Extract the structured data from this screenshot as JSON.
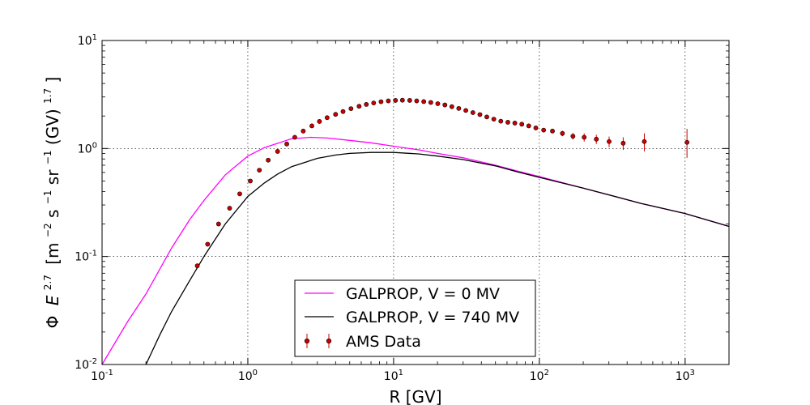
{
  "chart_data": {
    "type": "scatter",
    "xscale": "log",
    "yscale": "log",
    "xlim": [
      0.1,
      2000
    ],
    "ylim": [
      0.01,
      10
    ],
    "grid": true,
    "legend_position": "lower-center",
    "xlabel": "R [GV]",
    "ylabel": {
      "phi": "Φ",
      "E": "E",
      "E_exp": "2.7",
      "open": "[m",
      "m_exp": "−2",
      "s": "s",
      "s_exp": "−1",
      "sr": "sr",
      "sr_exp": "−1",
      "gv": "(GV)",
      "gv_exp": "1.7",
      "close": "]"
    },
    "x_ticks": [
      {
        "value": 0.1,
        "base": "10",
        "exp": "-1"
      },
      {
        "value": 1,
        "base": "10",
        "exp": "0"
      },
      {
        "value": 10,
        "base": "10",
        "exp": "1"
      },
      {
        "value": 100,
        "base": "10",
        "exp": "2"
      },
      {
        "value": 1000,
        "base": "10",
        "exp": "3"
      }
    ],
    "y_ticks": [
      {
        "value": 0.01,
        "base": "10",
        "exp": "-2"
      },
      {
        "value": 0.1,
        "base": "10",
        "exp": "-1"
      },
      {
        "value": 1,
        "base": "10",
        "exp": "0"
      },
      {
        "value": 10,
        "base": "10",
        "exp": "1"
      }
    ],
    "series": [
      {
        "name": "GALPROP, V = 0 MV",
        "kind": "line",
        "color": "#ff00ff",
        "x": [
          0.1,
          0.15,
          0.2,
          0.3,
          0.4,
          0.5,
          0.7,
          1.0,
          1.3,
          2.0,
          2.7,
          3.5,
          5.0,
          7.0,
          10,
          15,
          20,
          30,
          50,
          70,
          100,
          200,
          500,
          1000,
          2000
        ],
        "y": [
          0.01,
          0.025,
          0.045,
          0.12,
          0.22,
          0.33,
          0.57,
          0.85,
          1.02,
          1.23,
          1.27,
          1.25,
          1.19,
          1.13,
          1.05,
          0.97,
          0.9,
          0.82,
          0.7,
          0.62,
          0.55,
          0.43,
          0.31,
          0.25,
          0.19
        ]
      },
      {
        "name": "GALPROP, V = 740 MV",
        "kind": "line",
        "color": "#000000",
        "x": [
          0.2,
          0.25,
          0.3,
          0.4,
          0.5,
          0.7,
          1.0,
          1.3,
          1.6,
          2.0,
          3.0,
          4.0,
          5.0,
          7.0,
          10,
          15,
          20,
          30,
          50,
          70,
          100,
          200,
          500,
          1000,
          2000
        ],
        "y": [
          0.01,
          0.019,
          0.031,
          0.06,
          0.1,
          0.2,
          0.36,
          0.48,
          0.58,
          0.68,
          0.81,
          0.87,
          0.9,
          0.92,
          0.92,
          0.89,
          0.85,
          0.79,
          0.69,
          0.61,
          0.54,
          0.43,
          0.31,
          0.25,
          0.19
        ]
      },
      {
        "name": "AMS Data",
        "kind": "points",
        "marker_color": "#cc0000",
        "error_color": "#cc0000",
        "x": [
          0.45,
          0.53,
          0.63,
          0.75,
          0.88,
          1.04,
          1.2,
          1.38,
          1.6,
          1.85,
          2.1,
          2.4,
          2.75,
          3.1,
          3.5,
          4.0,
          4.5,
          5.1,
          5.8,
          6.5,
          7.3,
          8.2,
          9.2,
          10.3,
          11.5,
          12.9,
          14.4,
          16.1,
          18.0,
          20.1,
          22.5,
          25.1,
          28.0,
          31.3,
          35.0,
          39.1,
          43.6,
          48.7,
          54.4,
          60.8,
          67.9,
          75.8,
          84.6,
          94.6,
          107,
          123,
          144,
          170,
          203,
          246,
          301,
          376,
          525,
          1030
        ],
        "y": [
          0.082,
          0.13,
          0.2,
          0.28,
          0.38,
          0.5,
          0.63,
          0.78,
          0.94,
          1.1,
          1.27,
          1.45,
          1.62,
          1.78,
          1.93,
          2.07,
          2.2,
          2.34,
          2.46,
          2.56,
          2.64,
          2.71,
          2.76,
          2.79,
          2.8,
          2.79,
          2.76,
          2.72,
          2.67,
          2.6,
          2.53,
          2.44,
          2.35,
          2.25,
          2.15,
          2.06,
          1.96,
          1.87,
          1.79,
          1.75,
          1.72,
          1.68,
          1.62,
          1.55,
          1.48,
          1.45,
          1.38,
          1.3,
          1.27,
          1.22,
          1.16,
          1.12,
          1.16,
          1.14
        ],
        "err_plus": [
          0.001,
          0.001,
          0.001,
          0.001,
          0.001,
          0.001,
          0.001,
          0.001,
          0.001,
          0.001,
          0.001,
          0.001,
          0.001,
          0.001,
          0.001,
          0.001,
          0.001,
          0.001,
          0.001,
          0.001,
          0.001,
          0.001,
          0.001,
          0.001,
          0.001,
          0.001,
          0.001,
          0.001,
          0.001,
          0.001,
          0.001,
          0.001,
          0.001,
          0.001,
          0.001,
          0.001,
          0.001,
          0.001,
          0.001,
          0.001,
          0.001,
          0.001,
          0.001,
          0.001,
          0.06,
          0.06,
          0.08,
          0.09,
          0.11,
          0.12,
          0.13,
          0.15,
          0.22,
          0.38
        ],
        "err_minus": [
          0.001,
          0.001,
          0.001,
          0.001,
          0.001,
          0.001,
          0.001,
          0.001,
          0.001,
          0.001,
          0.001,
          0.001,
          0.001,
          0.001,
          0.001,
          0.001,
          0.001,
          0.001,
          0.001,
          0.001,
          0.001,
          0.001,
          0.001,
          0.001,
          0.001,
          0.001,
          0.001,
          0.001,
          0.001,
          0.001,
          0.001,
          0.001,
          0.001,
          0.001,
          0.001,
          0.001,
          0.001,
          0.001,
          0.001,
          0.001,
          0.001,
          0.001,
          0.001,
          0.001,
          0.06,
          0.06,
          0.08,
          0.09,
          0.11,
          0.12,
          0.13,
          0.15,
          0.22,
          0.32
        ]
      }
    ]
  }
}
